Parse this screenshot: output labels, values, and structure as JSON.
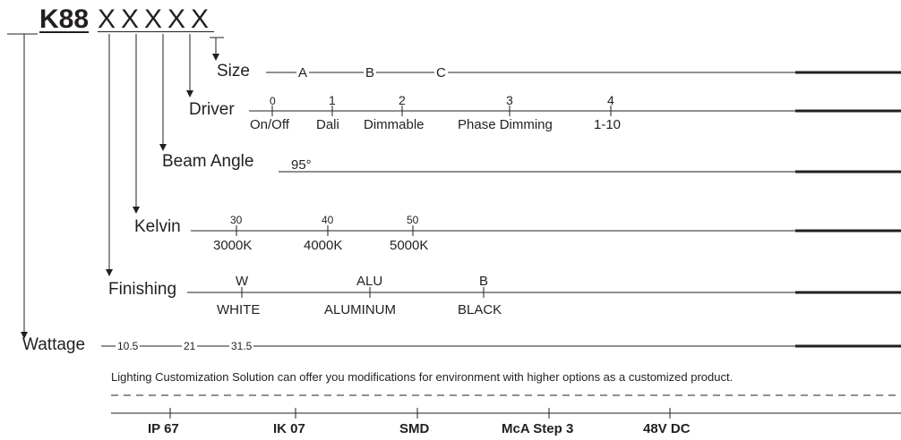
{
  "header": {
    "code": "K88",
    "placeholders": "XXXXX"
  },
  "size": {
    "label": "Size",
    "options": [
      "A",
      "B",
      "C"
    ]
  },
  "driver": {
    "label": "Driver",
    "options": [
      {
        "code": "0",
        "name": "On/Off"
      },
      {
        "code": "1",
        "name": "Dali"
      },
      {
        "code": "2",
        "name": "Dimmable"
      },
      {
        "code": "3",
        "name": "Phase Dimming"
      },
      {
        "code": "4",
        "name": "1-10"
      }
    ]
  },
  "beam_angle": {
    "label": "Beam Angle",
    "value": "95°"
  },
  "kelvin": {
    "label": "Kelvin",
    "options": [
      {
        "code": "30",
        "name": "3000K"
      },
      {
        "code": "40",
        "name": "4000K"
      },
      {
        "code": "50",
        "name": "5000K"
      }
    ]
  },
  "finishing": {
    "label": "Finishing",
    "options": [
      {
        "code": "W",
        "name": "WHITE"
      },
      {
        "code": "ALU",
        "name": "ALUMINUM"
      },
      {
        "code": "B",
        "name": "BLACK"
      }
    ]
  },
  "wattage": {
    "label": "Wattage",
    "options": [
      "10.5",
      "21",
      "31.5"
    ]
  },
  "note": "Lighting Customization Solution can offer you modifications for environment with higher options as a customized product.",
  "features": [
    "IP 67",
    "IK 07",
    "SMD",
    "McA Step 3",
    "48V DC"
  ]
}
